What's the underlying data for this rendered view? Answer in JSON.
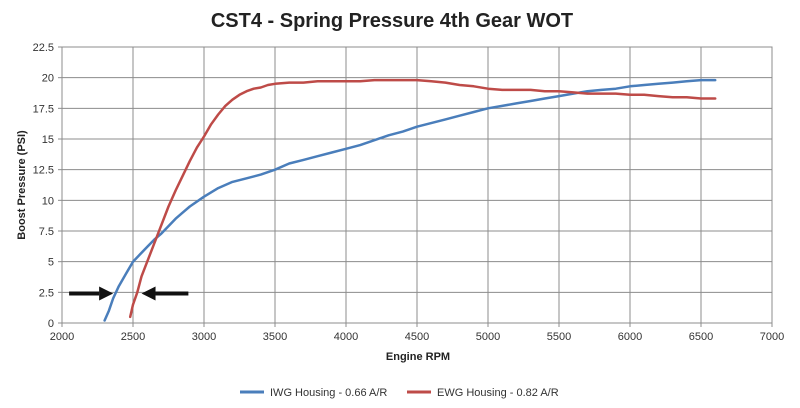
{
  "chart_data": {
    "type": "line",
    "title": "CST4 - Spring Pressure 4th Gear WOT",
    "xlabel": "Engine RPM",
    "ylabel": "Boost Pressure (PSI)",
    "xlim": [
      2000,
      7000
    ],
    "ylim": [
      0,
      22.5
    ],
    "x_ticks": [
      "2000",
      "2500",
      "3000",
      "3500",
      "4000",
      "4500",
      "5000",
      "5500",
      "6000",
      "6500",
      "7000"
    ],
    "y_ticks": [
      "0",
      "2.5",
      "5",
      "7.5",
      "10",
      "12.5",
      "15",
      "17.5",
      "20",
      "22.5"
    ],
    "grid": true,
    "legend_position": "bottom",
    "annotations": [
      {
        "type": "arrow",
        "direction": "right",
        "from": [
          2050,
          2.4
        ],
        "to": [
          2360,
          2.4
        ]
      },
      {
        "type": "arrow",
        "direction": "left",
        "from": [
          2890,
          2.4
        ],
        "to": [
          2560,
          2.4
        ]
      }
    ],
    "series": [
      {
        "name": "IWG Housing - 0.66 A/R",
        "color": "#4a7ebb",
        "x": [
          2300,
          2330,
          2360,
          2400,
          2450,
          2500,
          2550,
          2600,
          2650,
          2700,
          2750,
          2800,
          2850,
          2900,
          3000,
          3100,
          3200,
          3300,
          3400,
          3500,
          3600,
          3700,
          3800,
          3900,
          4000,
          4100,
          4200,
          4300,
          4400,
          4500,
          4600,
          4700,
          4800,
          4900,
          5000,
          5100,
          5200,
          5300,
          5400,
          5500,
          5600,
          5700,
          5800,
          5900,
          6000,
          6100,
          6200,
          6300,
          6400,
          6500,
          6600
        ],
        "y": [
          0.2,
          1.0,
          2.0,
          3.0,
          4.0,
          5.0,
          5.6,
          6.2,
          6.8,
          7.3,
          7.9,
          8.5,
          9.0,
          9.5,
          10.3,
          11.0,
          11.5,
          11.8,
          12.1,
          12.5,
          13.0,
          13.3,
          13.6,
          13.9,
          14.2,
          14.5,
          14.9,
          15.3,
          15.6,
          16.0,
          16.3,
          16.6,
          16.9,
          17.2,
          17.5,
          17.7,
          17.9,
          18.1,
          18.3,
          18.5,
          18.7,
          18.9,
          19.0,
          19.1,
          19.3,
          19.4,
          19.5,
          19.6,
          19.7,
          19.8,
          19.8
        ]
      },
      {
        "name": "EWG Housing - 0.82 A/R",
        "color": "#be4b48",
        "x": [
          2480,
          2500,
          2530,
          2560,
          2600,
          2650,
          2700,
          2750,
          2800,
          2850,
          2900,
          2950,
          3000,
          3050,
          3100,
          3150,
          3200,
          3250,
          3300,
          3350,
          3400,
          3450,
          3500,
          3600,
          3700,
          3800,
          3900,
          4000,
          4100,
          4200,
          4300,
          4400,
          4500,
          4600,
          4700,
          4800,
          4900,
          5000,
          5100,
          5200,
          5300,
          5400,
          5500,
          5600,
          5700,
          5800,
          5900,
          6000,
          6100,
          6200,
          6300,
          6400,
          6500,
          6600
        ],
        "y": [
          0.5,
          1.5,
          2.5,
          3.8,
          5.0,
          6.5,
          8.0,
          9.5,
          10.8,
          12.0,
          13.2,
          14.3,
          15.2,
          16.2,
          17.0,
          17.7,
          18.2,
          18.6,
          18.9,
          19.1,
          19.2,
          19.4,
          19.5,
          19.6,
          19.6,
          19.7,
          19.7,
          19.7,
          19.7,
          19.8,
          19.8,
          19.8,
          19.8,
          19.7,
          19.6,
          19.4,
          19.3,
          19.1,
          19.0,
          19.0,
          19.0,
          18.9,
          18.9,
          18.8,
          18.7,
          18.7,
          18.7,
          18.6,
          18.6,
          18.5,
          18.4,
          18.4,
          18.3,
          18.3
        ]
      }
    ]
  }
}
